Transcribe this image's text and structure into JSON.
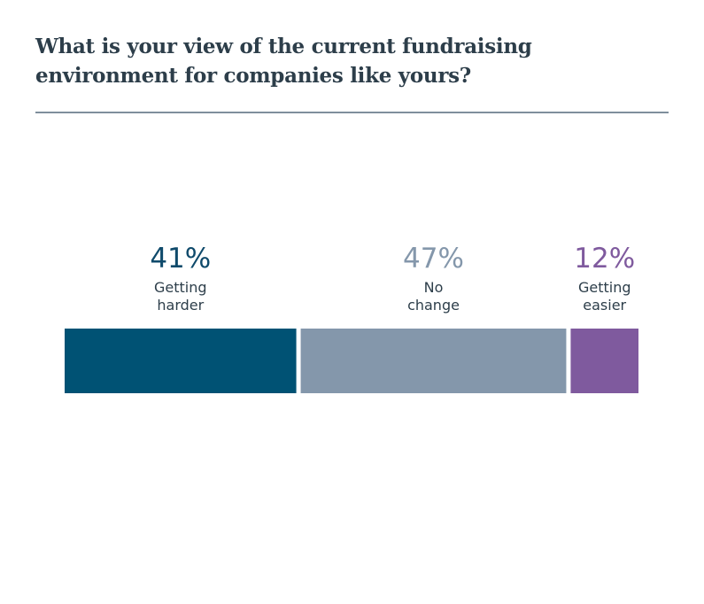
{
  "chart_data": {
    "type": "bar",
    "orientation": "horizontal-stacked",
    "title": "What is your view of the current fundraising environment for companies like yours?",
    "categories": [
      "Getting harder",
      "No change",
      "Getting easier"
    ],
    "category_lines": [
      [
        "Getting",
        "harder"
      ],
      [
        "No",
        "change"
      ],
      [
        "Getting",
        "easier"
      ]
    ],
    "values": [
      41,
      47,
      12
    ],
    "value_labels": [
      "41%",
      "47%",
      "12%"
    ],
    "colors": [
      "#005274",
      "#8497ab",
      "#7f5a9e"
    ],
    "value_label_colors": [
      "#0f4a6b",
      "#8497ab",
      "#7f5a9e"
    ],
    "unit": "%",
    "grid": false,
    "legend": "none"
  }
}
